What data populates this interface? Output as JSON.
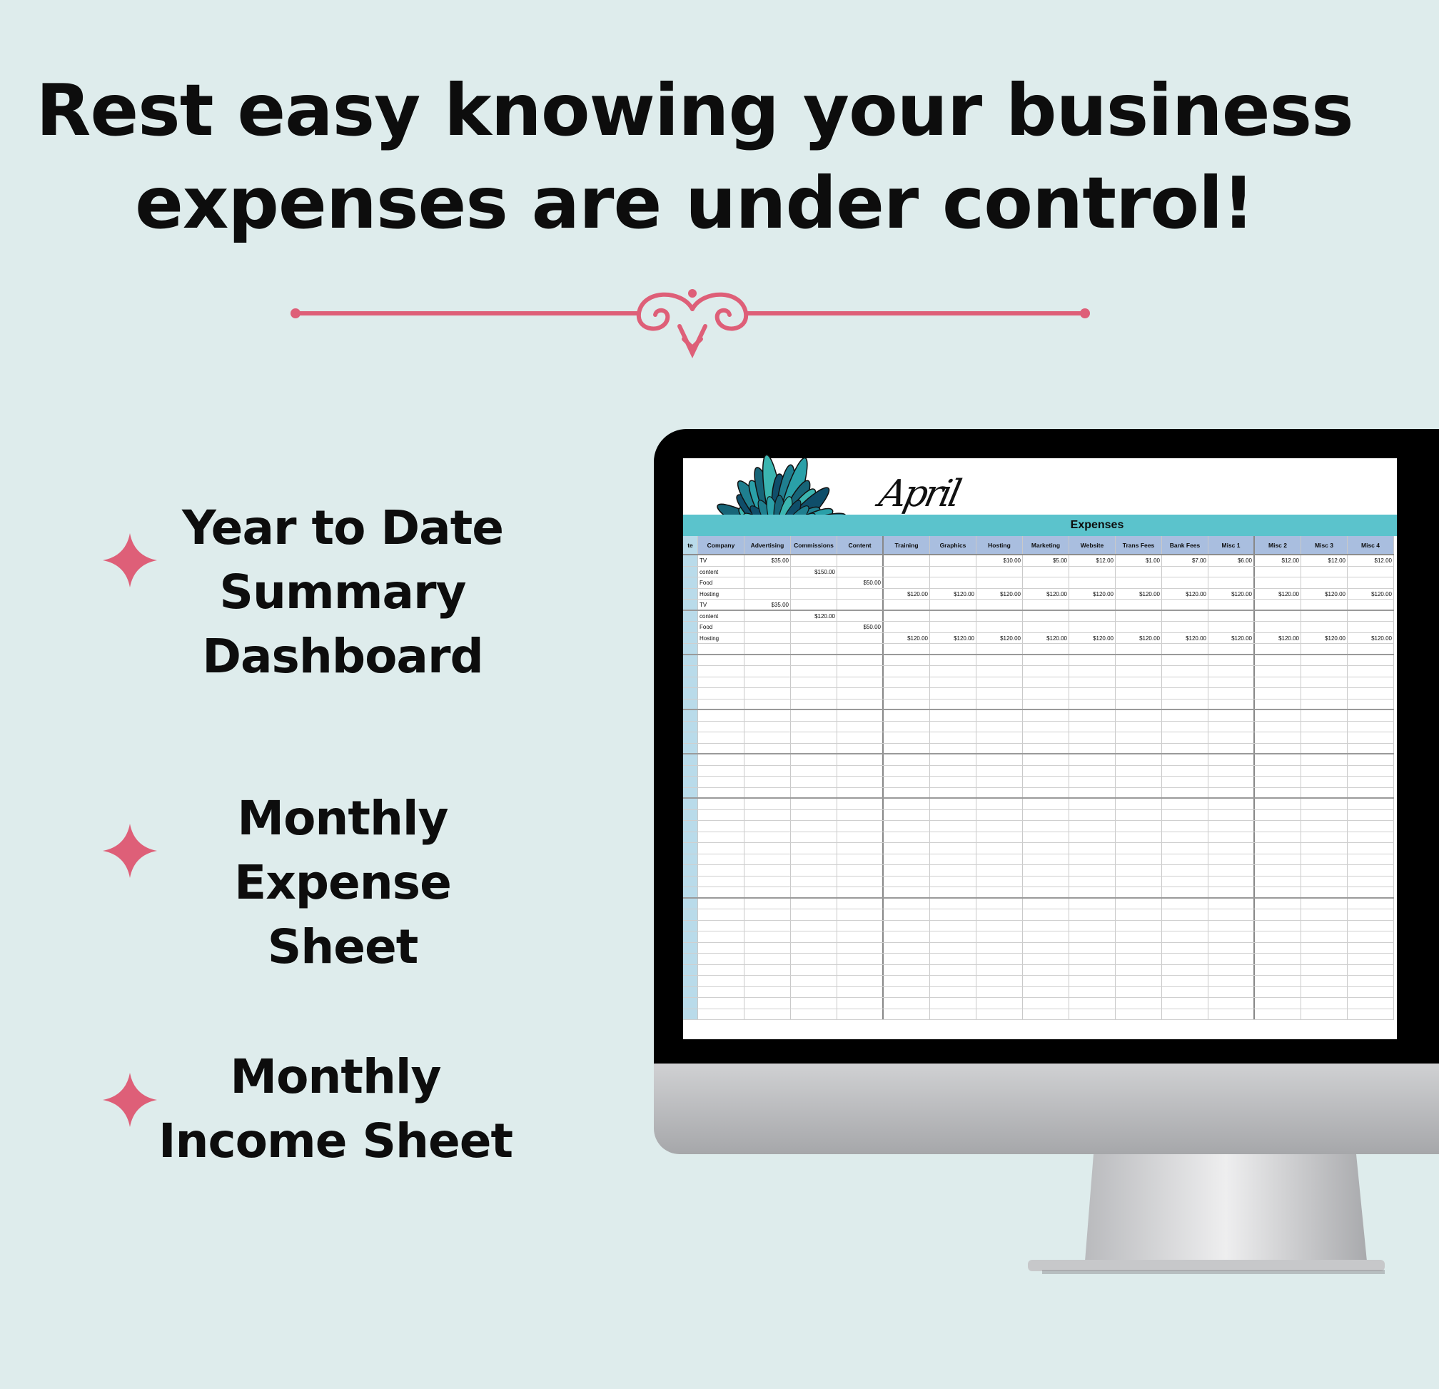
{
  "headline": {
    "line1": "Rest easy knowing your business",
    "line2": "expenses are under control!"
  },
  "colors": {
    "accent": "#de5f78",
    "background": "#deecec",
    "band": "#5bc3cc",
    "header": "#a9bedf"
  },
  "features": [
    {
      "icon": "four-point-star-icon",
      "lines": [
        "Year to Date",
        "Summary",
        "Dashboard"
      ]
    },
    {
      "icon": "four-point-star-icon",
      "lines": [
        "Monthly",
        "Expense Sheet"
      ]
    },
    {
      "icon": "four-point-star-icon",
      "lines": [
        "Monthly",
        "Income Sheet"
      ]
    }
  ],
  "sheet": {
    "month": "April",
    "band_title": "Expenses",
    "columns": [
      "te",
      "Company",
      "Advertising",
      "Commissions",
      "Content",
      "Training",
      "Graphics",
      "Hosting",
      "Marketing",
      "Website",
      "Trans Fees",
      "Bank Fees",
      "Misc 1",
      "Misc 2",
      "Misc 3",
      "Misc 4"
    ],
    "rows": [
      [
        "TV",
        "$35.00",
        "",
        "",
        "",
        "",
        "$10.00",
        "$5.00",
        "$12.00",
        "$1.00",
        "$7.00",
        "$6.00",
        "$12.00",
        "$12.00",
        "$12.00"
      ],
      [
        "content",
        "",
        "$150.00",
        "",
        "",
        "",
        "",
        "",
        "",
        "",
        "",
        "",
        "",
        "",
        ""
      ],
      [
        "Food",
        "",
        "",
        "$50.00",
        "",
        "",
        "",
        "",
        "",
        "",
        "",
        "",
        "",
        "",
        ""
      ],
      [
        "Hosting",
        "",
        "",
        "",
        "$120.00",
        "$120.00",
        "$120.00",
        "$120.00",
        "$120.00",
        "$120.00",
        "$120.00",
        "$120.00",
        "$120.00",
        "$120.00",
        "$120.00"
      ],
      [
        "TV",
        "$35.00",
        "",
        "",
        "",
        "",
        "",
        "",
        "",
        "",
        "",
        "",
        "",
        "",
        ""
      ],
      [
        "content",
        "",
        "$120.00",
        "",
        "",
        "",
        "",
        "",
        "",
        "",
        "",
        "",
        "",
        "",
        ""
      ],
      [
        "Food",
        "",
        "",
        "$50.00",
        "",
        "",
        "",
        "",
        "",
        "",
        "",
        "",
        "",
        "",
        ""
      ],
      [
        "Hosting",
        "",
        "",
        "",
        "$120.00",
        "$120.00",
        "$120.00",
        "$120.00",
        "$120.00",
        "$120.00",
        "$120.00",
        "$120.00",
        "$120.00",
        "$120.00",
        "$120.00"
      ]
    ]
  }
}
